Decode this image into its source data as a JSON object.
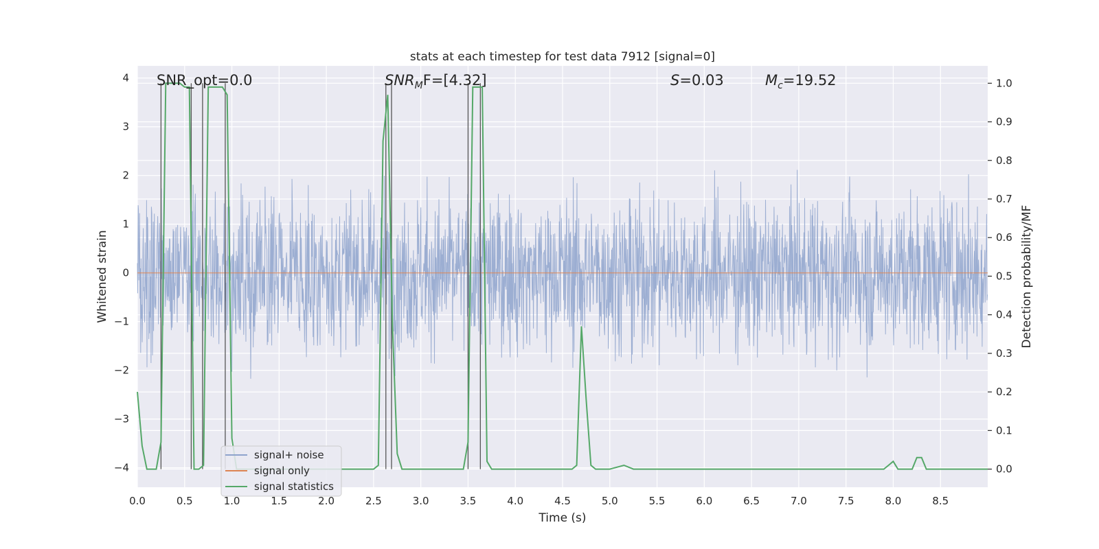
{
  "chart_data": {
    "type": "line",
    "title": "stats at each timestep for test data 7912 [signal=0]",
    "xlabel": "Time (s)",
    "ylabel": "Whitened strain",
    "y2label": "Detection probability/MF",
    "xlim": [
      0,
      9.0
    ],
    "ylim": [
      -4.4,
      4.25
    ],
    "y2lim": [
      -0.047,
      1.045
    ],
    "xticks": [
      0.0,
      0.5,
      1.0,
      1.5,
      2.0,
      2.5,
      3.0,
      3.5,
      4.0,
      4.5,
      5.0,
      5.5,
      6.0,
      6.5,
      7.0,
      7.5,
      8.0,
      8.5
    ],
    "xtick_labels": [
      "0.0",
      "0.5",
      "1.0",
      "1.5",
      "2.0",
      "2.5",
      "3.0",
      "3.5",
      "4.0",
      "4.5",
      "5.0",
      "5.5",
      "6.0",
      "6.5",
      "7.0",
      "7.5",
      "8.0",
      "8.5"
    ],
    "yticks": [
      4,
      3,
      2,
      1,
      0,
      -1,
      -2,
      -3,
      -4
    ],
    "ytick_labels": [
      "4",
      "3",
      "2",
      "1",
      "0",
      "−1",
      "−2",
      "−3",
      "−4"
    ],
    "y2ticks": [
      1.0,
      0.9,
      0.8,
      0.7,
      0.6,
      0.5,
      0.4,
      0.3,
      0.2,
      0.1,
      0.0
    ],
    "y2tick_labels": [
      "1.0",
      "0.9",
      "0.8",
      "0.7",
      "0.6",
      "0.5",
      "0.4",
      "0.3",
      "0.2",
      "0.1",
      "0.0"
    ],
    "grid": true,
    "legend_position": "lower-left",
    "annotations": {
      "snr_opt": "SNR_opt=0.0",
      "snr_mf_italic": "SNR",
      "snr_mf_sub": "M",
      "snr_mf_rest": "F=[4.32]",
      "s_italic": "S",
      "s_rest": "=0.03",
      "mc_italic": "M",
      "mc_sub": "c",
      "mc_rest": "=19.52"
    },
    "series": [
      {
        "name": "signal+ noise",
        "color": "#8ea3cc",
        "style": "noise-band",
        "sample_rate": 256,
        "amplitude_envelope": 4.0
      },
      {
        "name": "signal only",
        "color": "#dd8452",
        "x": [
          0,
          9.0
        ],
        "y": [
          0,
          0
        ]
      },
      {
        "name": "signal statistics",
        "color": "#55a868",
        "axis": "right",
        "x": [
          0.0,
          0.05,
          0.1,
          0.15,
          0.2,
          0.25,
          0.3,
          0.35,
          0.4,
          0.45,
          0.5,
          0.55,
          0.6,
          0.65,
          0.7,
          0.75,
          0.8,
          0.85,
          0.9,
          0.95,
          1.0,
          1.05,
          1.1,
          1.15,
          1.2,
          2.5,
          2.55,
          2.6,
          2.65,
          2.7,
          2.75,
          2.8,
          2.85,
          2.9,
          3.4,
          3.45,
          3.5,
          3.55,
          3.6,
          3.65,
          3.7,
          3.75,
          3.8,
          4.6,
          4.65,
          4.7,
          4.75,
          4.8,
          4.85,
          4.9,
          4.95,
          5.0,
          5.15,
          5.25,
          5.3,
          5.35,
          7.85,
          7.9,
          7.95,
          8.0,
          8.05,
          8.1,
          8.15,
          8.2,
          8.25,
          8.3,
          8.35,
          8.4,
          8.45,
          8.5,
          9.0
        ],
        "y": [
          0.2,
          0.06,
          0.0,
          0.0,
          0.0,
          0.07,
          1.0,
          1.0,
          1.0,
          1.0,
          0.99,
          0.99,
          0.0,
          0.0,
          0.01,
          0.99,
          0.99,
          0.99,
          0.99,
          0.97,
          0.08,
          0.0,
          0.0,
          0.0,
          0.0,
          0.0,
          0.01,
          0.85,
          0.97,
          0.37,
          0.04,
          0.0,
          0.0,
          0.0,
          0.0,
          0.0,
          0.07,
          0.99,
          0.99,
          0.99,
          0.02,
          0.0,
          0.0,
          0.0,
          0.01,
          0.37,
          0.18,
          0.01,
          0.0,
          0.0,
          0.0,
          0.0,
          0.01,
          0.0,
          0.0,
          0.0,
          0.0,
          0.0,
          0.01,
          0.02,
          0.0,
          0.0,
          0.0,
          0.0,
          0.03,
          0.03,
          0.0,
          0.0,
          0.0,
          0.0,
          0.0
        ]
      }
    ],
    "vlines": {
      "color": "#555555",
      "x": [
        0.25,
        0.57,
        0.69,
        0.93,
        2.63,
        2.69,
        3.5,
        3.63
      ]
    }
  }
}
